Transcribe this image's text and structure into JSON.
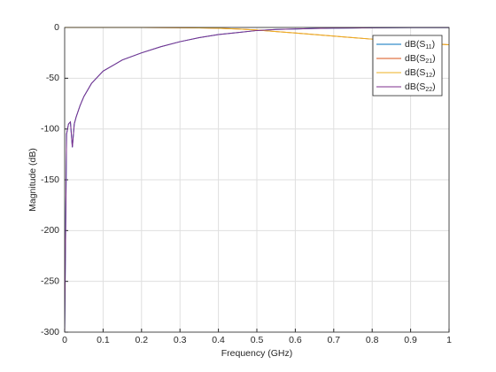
{
  "chart_data": {
    "type": "line",
    "xlabel": "Frequency (GHz)",
    "ylabel": "Magnitude (dB)",
    "x": [
      0,
      0.005,
      0.01,
      0.015,
      0.02,
      0.025,
      0.03,
      0.04,
      0.05,
      0.07,
      0.1,
      0.15,
      0.2,
      0.25,
      0.3,
      0.35,
      0.4,
      0.45,
      0.5,
      0.55,
      0.6,
      0.65,
      0.7,
      0.75,
      0.8,
      0.85,
      0.9,
      0.95,
      1
    ],
    "series": [
      {
        "name": "dB(S11)",
        "color": "#0072bd",
        "values": [
          -300,
          -105,
          -95,
          -93,
          -118,
          -95,
          -88,
          -77,
          -68,
          -55,
          -43,
          -32,
          -25,
          -19,
          -14,
          -10,
          -7,
          -5,
          -3,
          -2,
          -1.5,
          -1,
          -0.7,
          -0.5,
          -0.3,
          -0.2,
          -0.1,
          -0.1,
          -0.1
        ]
      },
      {
        "name": "dB(S21)",
        "color": "#d95319",
        "values": [
          0,
          0,
          0,
          0,
          0,
          0,
          0,
          0,
          0,
          0,
          0,
          0,
          0,
          -0.1,
          -0.2,
          -0.4,
          -0.8,
          -1.5,
          -2.5,
          -4,
          -5.5,
          -7,
          -8.5,
          -10,
          -11.5,
          -13,
          -14.5,
          -16,
          -17
        ]
      },
      {
        "name": "dB(S12)",
        "color": "#edb120",
        "values": [
          0,
          0,
          0,
          0,
          0,
          0,
          0,
          0,
          0,
          0,
          0,
          0,
          0,
          -0.1,
          -0.2,
          -0.4,
          -0.8,
          -1.5,
          -2.5,
          -4,
          -5.5,
          -7,
          -8.5,
          -10,
          -11.5,
          -13,
          -14.5,
          -16,
          -17
        ]
      },
      {
        "name": "dB(S22)",
        "color": "#7e2f8e",
        "values": [
          -300,
          -105,
          -95,
          -93,
          -118,
          -95,
          -88,
          -77,
          -68,
          -55,
          -43,
          -32,
          -25,
          -19,
          -14,
          -10,
          -7,
          -5,
          -3,
          -2,
          -1.5,
          -1,
          -0.7,
          -0.5,
          -0.3,
          -0.2,
          -0.1,
          -0.1,
          -0.1
        ]
      }
    ],
    "xlim": [
      0,
      1
    ],
    "xticks": [
      0,
      0.1,
      0.2,
      0.3,
      0.4,
      0.5,
      0.6,
      0.7,
      0.8,
      0.9,
      1
    ],
    "ylim": [
      -300,
      0
    ],
    "yticks": [
      -300,
      -250,
      -200,
      -150,
      -100,
      -50,
      0
    ],
    "grid": true,
    "legend": "northeast"
  }
}
